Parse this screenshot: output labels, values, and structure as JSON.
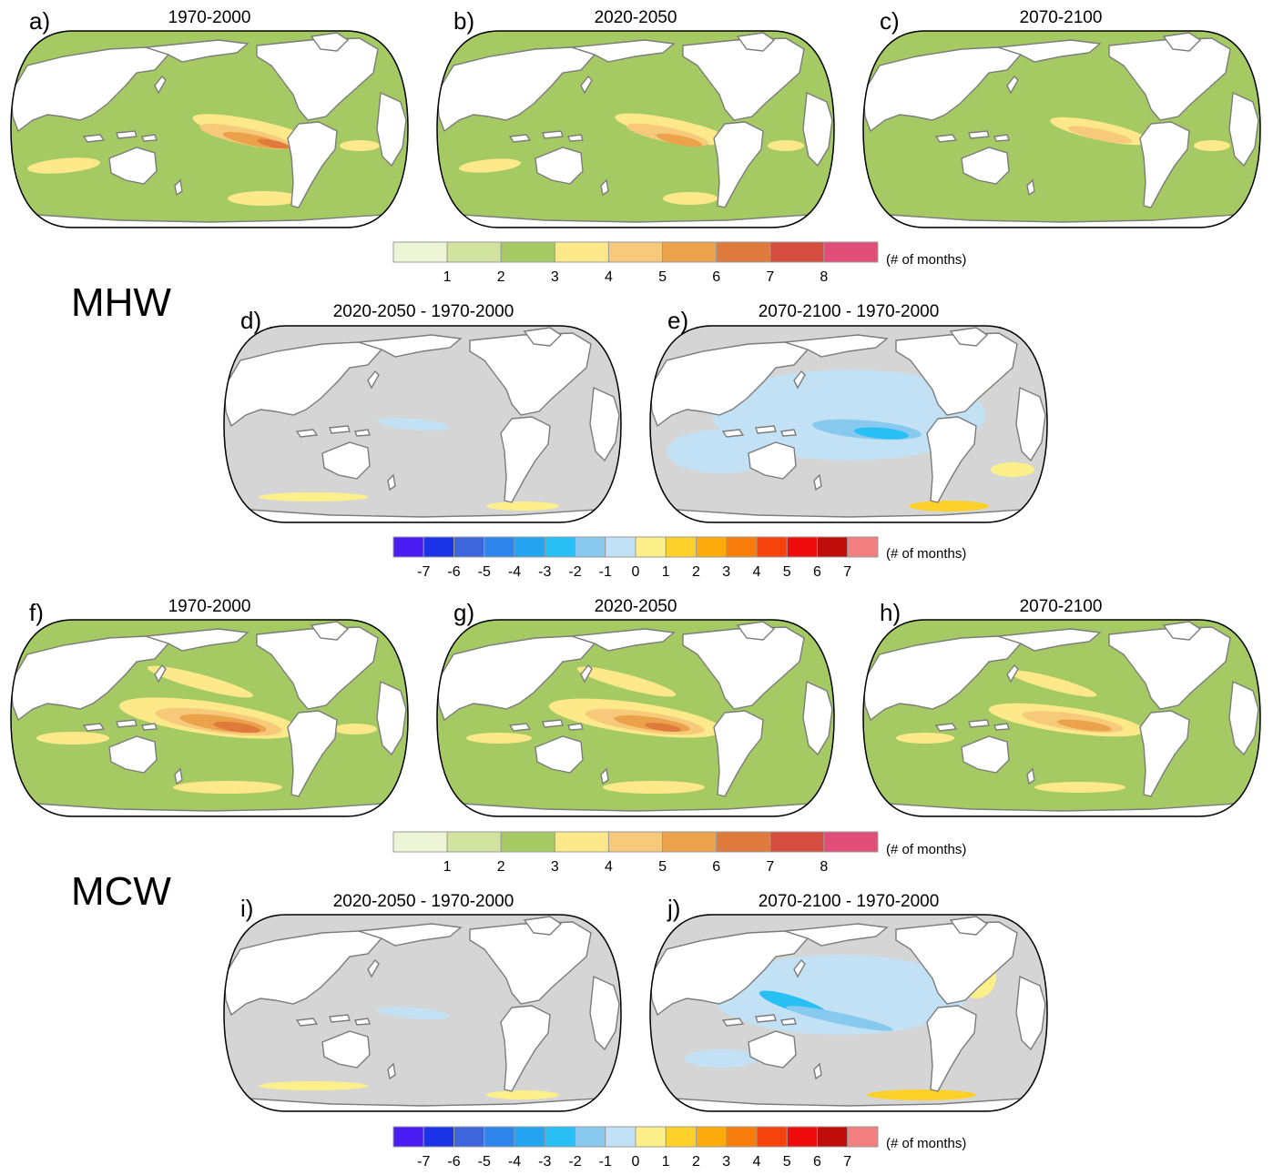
{
  "sections": {
    "mhw": "MHW",
    "mcw": "MCW"
  },
  "panels": {
    "a": {
      "label": "a)",
      "title": "1970-2000"
    },
    "b": {
      "label": "b)",
      "title": "2020-2050"
    },
    "c": {
      "label": "c)",
      "title": "2070-2100"
    },
    "d": {
      "label": "d)",
      "title": "2020-2050 - 1970-2000"
    },
    "e": {
      "label": "e)",
      "title": "2070-2100 - 1970-2000"
    },
    "f": {
      "label": "f)",
      "title": "1970-2000"
    },
    "g": {
      "label": "g)",
      "title": "2020-2050"
    },
    "h": {
      "label": "h)",
      "title": "2070-2100"
    },
    "i": {
      "label": "i)",
      "title": "2020-2050 - 1970-2000"
    },
    "j": {
      "label": "j)",
      "title": "2070-2100 - 1970-2000"
    }
  },
  "colorbars": {
    "absolute": {
      "unit": "(# of months)",
      "ticks": [
        "1",
        "2",
        "3",
        "4",
        "5",
        "6",
        "7",
        "8"
      ],
      "colors": [
        "#eef5d6",
        "#d1e39e",
        "#a5ca63",
        "#fde98a",
        "#f6ca7a",
        "#eca24a",
        "#de7a3c",
        "#d54d3e",
        "#e24e7a"
      ]
    },
    "difference": {
      "unit": "(# of months)",
      "ticks": [
        "-7",
        "-6",
        "-5",
        "-4",
        "-3",
        "-2",
        "-1",
        "0",
        "1",
        "2",
        "3",
        "4",
        "5",
        "6",
        "7"
      ],
      "colors": [
        "#4a1cf2",
        "#1a33e6",
        "#3e66dc",
        "#2e86ec",
        "#24a4f0",
        "#28bff5",
        "#88c9ef",
        "#c2e1f5",
        "#fdf08a",
        "#fdd12a",
        "#fbac0c",
        "#f87d0c",
        "#f6420c",
        "#ee0c0c",
        "#c10c0c",
        "#f27f7f"
      ]
    }
  },
  "map_fills": {
    "land": "#ffffff",
    "absolute_ocean": "#a5ca63",
    "difference_ocean": "#d5d5d5",
    "coastline": "#7b7b7b"
  }
}
